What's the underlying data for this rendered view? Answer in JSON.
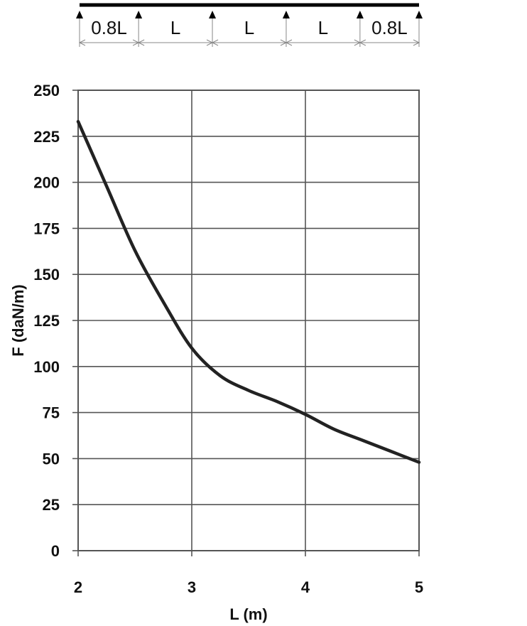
{
  "beam": {
    "spans": [
      "0.8L",
      "L",
      "L",
      "L",
      "0.8L"
    ],
    "span_ratios": [
      0.8,
      1,
      1,
      1,
      0.8
    ]
  },
  "chart_data": {
    "type": "line",
    "title": "",
    "xlabel": "L (m)",
    "ylabel": "F (daN/m)",
    "xlim": [
      2,
      5
    ],
    "ylim": [
      0,
      250
    ],
    "x_ticks": [
      2,
      3,
      4,
      5
    ],
    "y_ticks": [
      0,
      25,
      50,
      75,
      100,
      125,
      150,
      175,
      200,
      225,
      250
    ],
    "grid": true,
    "colors": {
      "line": "#222222",
      "grid": "#555555"
    },
    "series": [
      {
        "x": [
          2.0,
          2.25,
          2.5,
          2.75,
          3.0,
          3.25,
          3.5,
          3.75,
          4.0,
          4.25,
          4.5,
          4.75,
          5.0
        ],
        "values": [
          233,
          198,
          163,
          135,
          110,
          95,
          87,
          81,
          74,
          66,
          60,
          54,
          48
        ]
      }
    ]
  }
}
